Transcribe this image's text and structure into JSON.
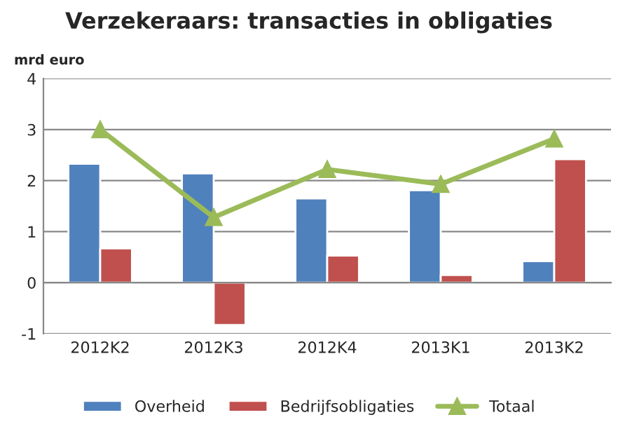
{
  "chart_data": {
    "type": "bar",
    "title": "Verzekeraars: transacties in obligaties",
    "ylabel": "mrd euro",
    "categories": [
      "2012K2",
      "2012K3",
      "2012K4",
      "2013K1",
      "2013K2"
    ],
    "series": [
      {
        "name": "Overheid",
        "color": "#4f81bd",
        "values": [
          2.33,
          2.14,
          1.65,
          1.81,
          0.42
        ]
      },
      {
        "name": "Bedrijfsobligaties",
        "color": "#c0504d",
        "values": [
          0.67,
          -0.83,
          0.53,
          0.15,
          2.42
        ]
      },
      {
        "name": "Totaal",
        "type": "line",
        "color": "#9bbb59",
        "values": [
          3.0,
          1.28,
          2.22,
          1.93,
          2.82
        ],
        "marker": "triangle"
      }
    ],
    "ylim": [
      -1,
      4
    ],
    "yticks": [
      -1,
      0,
      1,
      2,
      3,
      4
    ],
    "grid": "y",
    "legend": "bottom"
  }
}
